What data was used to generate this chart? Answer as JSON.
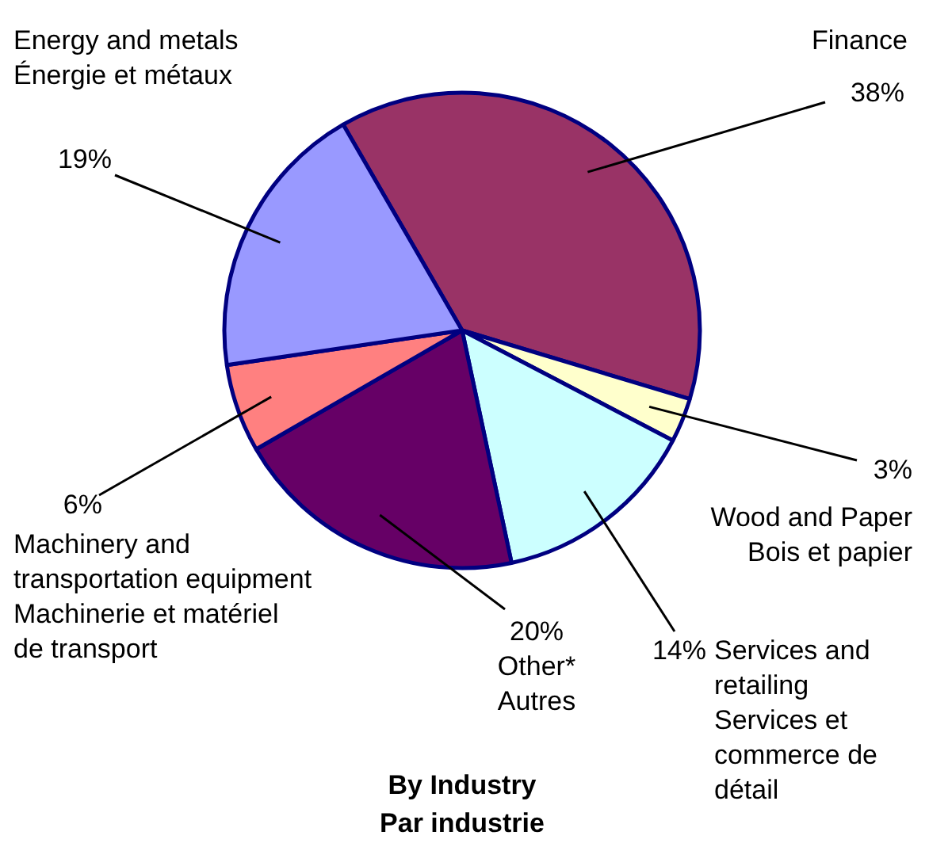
{
  "chart_data": {
    "type": "pie",
    "title": "By Industry\nPar industrie",
    "categories": [
      "Finance",
      "Wood and Paper\nBois et papier",
      "Services and\nretailing\nServices et\ncommerce de\ndétail",
      "Other*\nAutres",
      "Machinery and\ntransportation equipment\nMachinerie et matériel\nde transport",
      "Energy and metals\nÉnergie et métaux"
    ],
    "values": [
      38,
      3,
      14,
      20,
      6,
      19
    ],
    "value_labels": [
      "38%",
      "3%",
      "14%",
      "20%",
      "6%",
      "19%"
    ],
    "colors": [
      "#993366",
      "#ffffcc",
      "#ccffff",
      "#660066",
      "#ff8080",
      "#9999ff"
    ]
  }
}
